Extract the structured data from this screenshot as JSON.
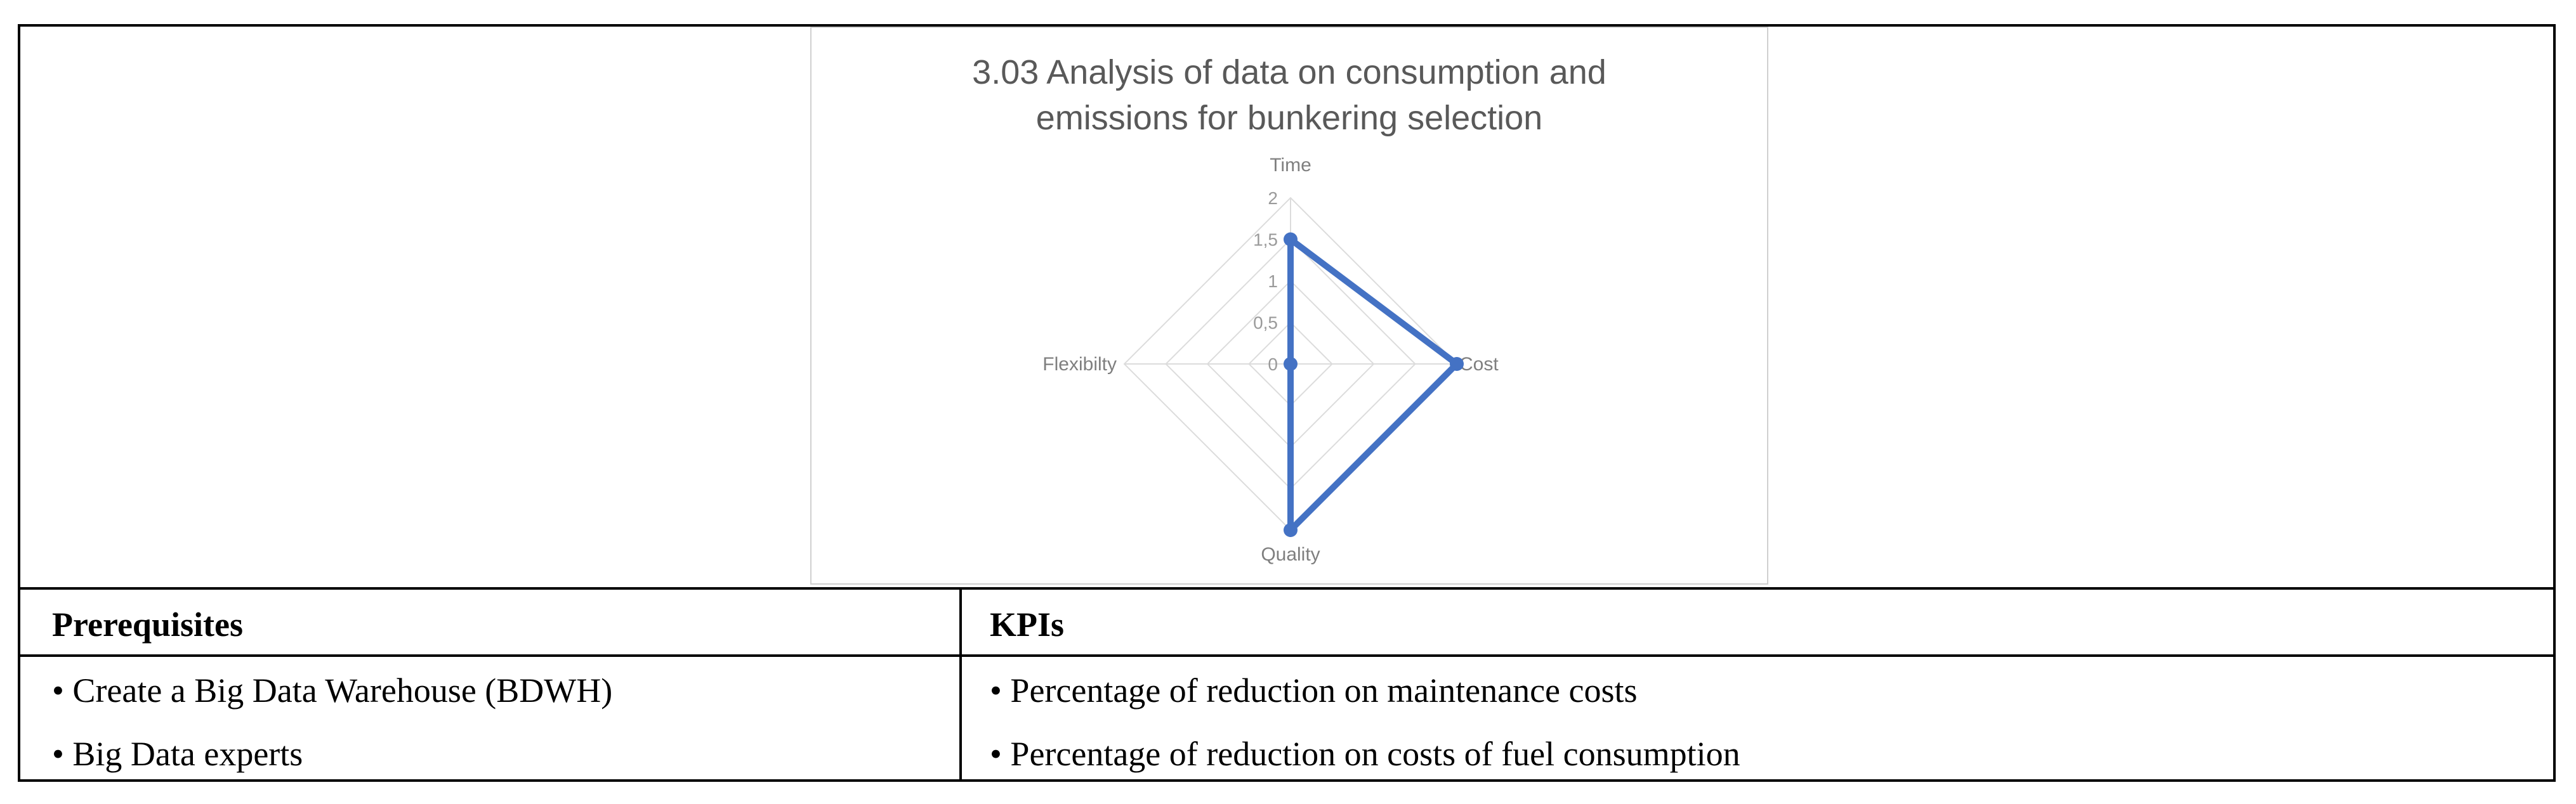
{
  "chart_data": {
    "type": "radar",
    "title_lines": [
      "3.03 Analysis of data on consumption and",
      "emissions for bunkering selection"
    ],
    "axes": [
      "Time",
      "Cost",
      "Quality",
      "Flexibilty"
    ],
    "ticks": [
      "0",
      "0,5",
      "1",
      "1,5",
      "2"
    ],
    "range": [
      0,
      2
    ],
    "series": [
      {
        "values": [
          1.5,
          2,
          2,
          0
        ],
        "color": "#4472C4"
      }
    ],
    "grid": true,
    "legend": "none"
  },
  "table": {
    "headers": {
      "left": "Prerequisites",
      "right": "KPIs"
    },
    "left_items": [
      "• Create a Big Data Warehouse (BDWH)",
      "• Big Data experts"
    ],
    "right_items": [
      "• Percentage of reduction on maintenance costs",
      "• Percentage of reduction on costs of fuel consumption"
    ]
  }
}
